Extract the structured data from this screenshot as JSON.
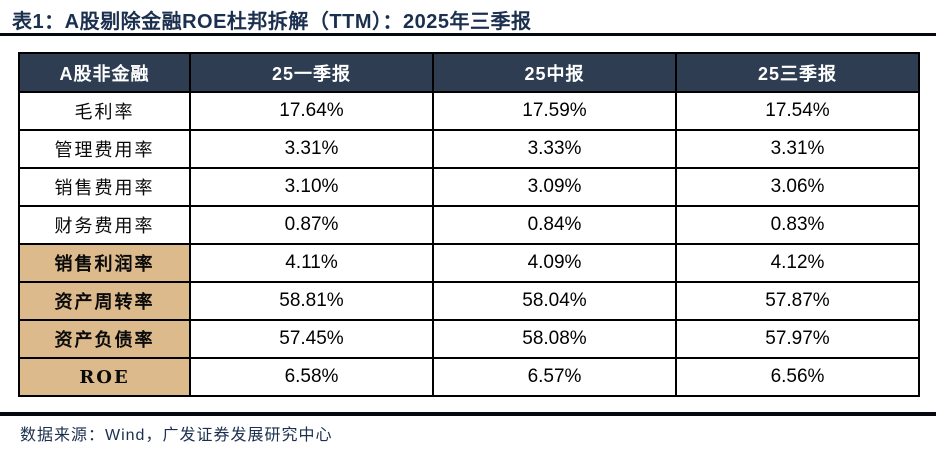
{
  "title": "表1：A股剔除金融ROE杜邦拆解（TTM）：2025年三季报",
  "source": "数据来源：Wind，广发证券发展研究中心",
  "colors": {
    "header_bg": "#2e3d52",
    "header_text": "#ffffff",
    "highlight_bg": "#dcba8b",
    "title_text": "#1b2f4e",
    "source_text": "#1b2f4e",
    "rule": "#05080f",
    "table_border": "#000000"
  },
  "chart_data": {
    "type": "table",
    "title": "A股剔除金融ROE杜邦拆解（TTM）：2025年三季报",
    "columns": [
      "A股非金融",
      "25一季报",
      "25中报",
      "25三季报"
    ],
    "rows": [
      {
        "label": "毛利率",
        "values": [
          "17.64%",
          "17.59%",
          "17.54%"
        ],
        "highlight": false
      },
      {
        "label": "管理费用率",
        "values": [
          "3.31%",
          "3.33%",
          "3.31%"
        ],
        "highlight": false
      },
      {
        "label": "销售费用率",
        "values": [
          "3.10%",
          "3.09%",
          "3.06%"
        ],
        "highlight": false
      },
      {
        "label": "财务费用率",
        "values": [
          "0.87%",
          "0.84%",
          "0.83%"
        ],
        "highlight": false
      },
      {
        "label": "销售利润率",
        "values": [
          "4.11%",
          "4.09%",
          "4.12%"
        ],
        "highlight": true
      },
      {
        "label": "资产周转率",
        "values": [
          "58.81%",
          "58.04%",
          "57.87%"
        ],
        "highlight": true
      },
      {
        "label": "资产负债率",
        "values": [
          "57.45%",
          "58.08%",
          "57.97%"
        ],
        "highlight": true
      },
      {
        "label": "ROE",
        "values": [
          "6.58%",
          "6.57%",
          "6.56%"
        ],
        "highlight": true
      }
    ]
  }
}
